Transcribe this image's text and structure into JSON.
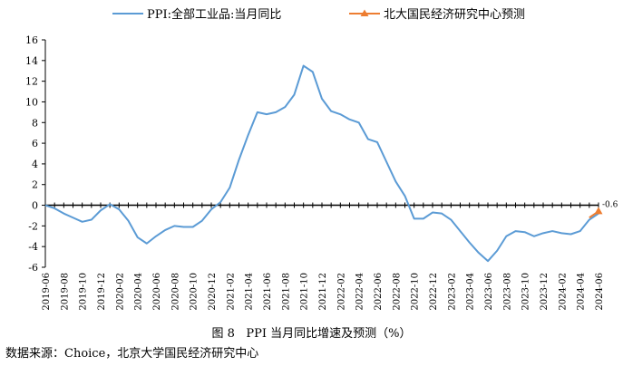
{
  "chart_data": {
    "type": "line",
    "title": "",
    "xlabel": "",
    "ylabel": "",
    "ylim": [
      -6,
      16
    ],
    "yticks": [
      -6,
      -4,
      -2,
      0,
      2,
      4,
      6,
      8,
      10,
      12,
      14,
      16
    ],
    "legend_position": "top",
    "grid": false,
    "x_tick_labels": [
      "2019-06",
      "2019-08",
      "2019-10",
      "2019-12",
      "2020-02",
      "2020-04",
      "2020-06",
      "2020-08",
      "2020-10",
      "2020-12",
      "2021-02",
      "2021-04",
      "2021-06",
      "2021-08",
      "2021-10",
      "2021-12",
      "2022-02",
      "2022-04",
      "2022-06",
      "2022-08",
      "2022-10",
      "2022-12",
      "2023-02",
      "2023-04",
      "2023-06",
      "2023-08",
      "2023-10",
      "2023-12",
      "2024-02",
      "2024-04",
      "2024-06"
    ],
    "x": [
      "2019-06",
      "2019-07",
      "2019-08",
      "2019-09",
      "2019-10",
      "2019-11",
      "2019-12",
      "2020-01",
      "2020-02",
      "2020-03",
      "2020-04",
      "2020-05",
      "2020-06",
      "2020-07",
      "2020-08",
      "2020-09",
      "2020-10",
      "2020-11",
      "2020-12",
      "2021-01",
      "2021-02",
      "2021-03",
      "2021-04",
      "2021-05",
      "2021-06",
      "2021-07",
      "2021-08",
      "2021-09",
      "2021-10",
      "2021-11",
      "2021-12",
      "2022-01",
      "2022-02",
      "2022-03",
      "2022-04",
      "2022-05",
      "2022-06",
      "2022-07",
      "2022-08",
      "2022-09",
      "2022-10",
      "2022-11",
      "2022-12",
      "2023-01",
      "2023-02",
      "2023-03",
      "2023-04",
      "2023-05",
      "2023-06",
      "2023-07",
      "2023-08",
      "2023-09",
      "2023-10",
      "2023-11",
      "2023-12",
      "2024-01",
      "2024-02",
      "2024-03",
      "2024-04",
      "2024-05",
      "2024-06"
    ],
    "series": [
      {
        "name": "PPI:全部工业品:当月同比",
        "color": "#5b9bd5",
        "marker": "none",
        "values": [
          0.0,
          -0.3,
          -0.8,
          -1.2,
          -1.6,
          -1.4,
          -0.5,
          0.1,
          -0.4,
          -1.5,
          -3.1,
          -3.7,
          -3.0,
          -2.4,
          -2.0,
          -2.1,
          -2.1,
          -1.5,
          -0.4,
          0.3,
          1.7,
          4.4,
          6.8,
          9.0,
          8.8,
          9.0,
          9.5,
          10.7,
          13.5,
          12.9,
          10.3,
          9.1,
          8.8,
          8.3,
          8.0,
          6.4,
          6.1,
          4.2,
          2.3,
          0.9,
          -1.3,
          -1.3,
          -0.7,
          -0.8,
          -1.4,
          -2.5,
          -3.6,
          -4.6,
          -5.4,
          -4.4,
          -3.0,
          -2.5,
          -2.6,
          -3.0,
          -2.7,
          -2.5,
          -2.7,
          -2.8,
          -2.5,
          -1.4,
          -0.8
        ]
      },
      {
        "name": "北大国民经济研究中心预测",
        "color": "#ed7d31",
        "marker": "triangle",
        "x": [
          "2024-05",
          "2024-06"
        ],
        "values": [
          -1.2,
          -0.6
        ]
      }
    ],
    "annotations": [
      {
        "x": "2024-06",
        "y": -0.6,
        "text": "-0.6"
      }
    ]
  },
  "caption": "图 8   PPI 当月同比增速及预测（%）",
  "source": "数据来源：Choice，北京大学国民经济研究中心"
}
